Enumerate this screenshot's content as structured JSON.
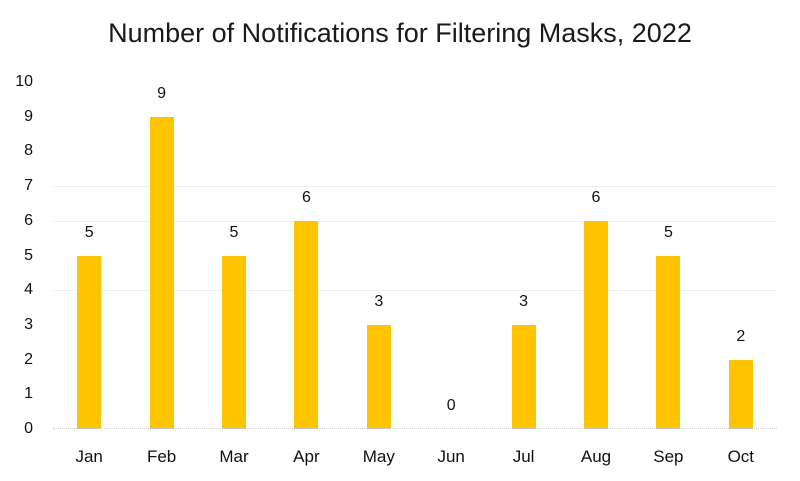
{
  "chart_data": {
    "type": "bar",
    "title": "Number of Notifications for Filtering Masks, 2022",
    "categories": [
      "Jan",
      "Feb",
      "Mar",
      "Apr",
      "May",
      "Jun",
      "Jul",
      "Aug",
      "Sep",
      "Oct"
    ],
    "values": [
      5,
      9,
      5,
      6,
      3,
      0,
      3,
      6,
      5,
      2
    ],
    "data_labels": [
      "5",
      "9",
      "5",
      "6",
      "3",
      "0",
      "3",
      "6",
      "5",
      "2"
    ],
    "xlabel": "",
    "ylabel": "",
    "ylim": [
      0,
      10
    ],
    "ytick_labels": [
      "0",
      "1",
      "2",
      "3",
      "4",
      "5",
      "6",
      "7",
      "8",
      "9",
      "10"
    ],
    "gridlines_visible_at": [
      4,
      6,
      7
    ],
    "legend": "none",
    "colors": {
      "bar": "#FFC400",
      "gridline": "#F0F0F0",
      "axis_line": "#CFCFCF",
      "text": "#111111",
      "background": "#FFFFFF"
    }
  }
}
